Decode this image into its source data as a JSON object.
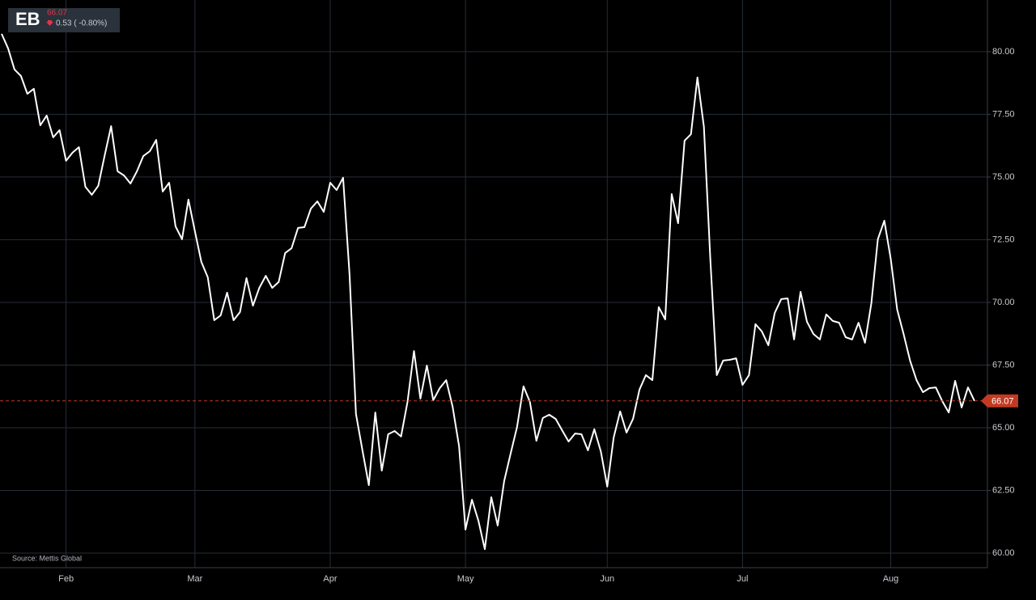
{
  "chart_data": {
    "type": "line",
    "ticker": "EB",
    "price": 66.07,
    "change": "0.53 ( -0.80%)",
    "source": "Source: Mettis Global",
    "last_price": 66.07,
    "last_price_color": "#c23a22",
    "color": "#ffffff",
    "grid": true,
    "ylim": [
      59.42,
      82.06
    ],
    "yticks": [
      {
        "value": 60,
        "label": "60.00"
      },
      {
        "value": 62.5,
        "label": "62.50"
      },
      {
        "value": 65,
        "label": "65.00"
      },
      {
        "value": 67.5,
        "label": "67.50"
      },
      {
        "value": 70,
        "label": "70.00"
      },
      {
        "value": 72.5,
        "label": "72.50"
      },
      {
        "value": 75,
        "label": "75.00"
      },
      {
        "value": 77.5,
        "label": "77.50"
      },
      {
        "value": 80,
        "label": "80.00"
      }
    ],
    "categories": [
      null,
      null,
      null,
      null,
      null,
      null,
      null,
      null,
      null,
      null,
      "Feb",
      null,
      null,
      null,
      null,
      null,
      null,
      null,
      null,
      null,
      null,
      null,
      null,
      null,
      null,
      null,
      null,
      null,
      null,
      null,
      "Mar",
      null,
      null,
      null,
      null,
      null,
      null,
      null,
      null,
      null,
      null,
      null,
      null,
      null,
      null,
      null,
      null,
      null,
      null,
      null,
      null,
      "Apr",
      null,
      null,
      null,
      null,
      null,
      null,
      null,
      null,
      null,
      null,
      null,
      null,
      null,
      null,
      null,
      null,
      null,
      null,
      null,
      null,
      "May",
      null,
      null,
      null,
      null,
      null,
      null,
      null,
      null,
      null,
      null,
      null,
      null,
      null,
      null,
      null,
      null,
      null,
      null,
      null,
      null,
      null,
      "Jun",
      null,
      null,
      null,
      null,
      null,
      null,
      null,
      null,
      null,
      null,
      null,
      null,
      null,
      null,
      null,
      null,
      null,
      null,
      null,
      null,
      "Jul",
      null,
      null,
      null,
      null,
      null,
      null,
      null,
      null,
      null,
      null,
      null,
      null,
      null,
      null,
      null,
      null,
      null,
      null,
      null,
      null,
      null,
      null,
      "Aug",
      null,
      null,
      null,
      null,
      null,
      null,
      null,
      null,
      null,
      null,
      null,
      null,
      null
    ],
    "values": [
      80.71,
      80.13,
      79.29,
      79.03,
      78.32,
      78.52,
      77.06,
      77.45,
      76.58,
      76.87,
      75.65,
      75.97,
      76.19,
      74.61,
      74.29,
      74.65,
      75.87,
      77.03,
      75.23,
      75.06,
      74.74,
      75.23,
      75.84,
      76.03,
      76.48,
      74.42,
      74.77,
      73.03,
      72.52,
      74.1,
      72.84,
      71.61,
      71.0,
      69.29,
      69.48,
      70.39,
      69.29,
      69.61,
      70.97,
      69.87,
      70.58,
      71.06,
      70.58,
      70.81,
      71.97,
      72.16,
      72.97,
      73.0,
      73.74,
      74.03,
      73.61,
      74.77,
      74.48,
      74.97,
      71.1,
      65.55,
      64.1,
      62.71,
      65.61,
      63.29,
      64.74,
      64.87,
      64.65,
      66.03,
      68.06,
      66.16,
      67.48,
      66.1,
      66.58,
      66.9,
      65.84,
      64.26,
      60.94,
      62.13,
      61.29,
      60.16,
      62.23,
      61.1,
      62.87,
      63.97,
      65.03,
      66.65,
      66.03,
      64.48,
      65.39,
      65.52,
      65.35,
      64.9,
      64.45,
      64.77,
      64.74,
      64.1,
      64.94,
      64.06,
      62.65,
      64.61,
      65.65,
      64.81,
      65.35,
      66.52,
      67.1,
      66.9,
      69.81,
      69.32,
      74.32,
      73.16,
      76.45,
      76.71,
      78.97,
      77.0,
      71.74,
      67.1,
      67.68,
      67.71,
      67.77,
      66.71,
      67.1,
      69.13,
      68.84,
      68.29,
      69.58,
      70.13,
      70.16,
      68.52,
      70.42,
      69.23,
      68.74,
      68.52,
      69.52,
      69.26,
      69.19,
      68.61,
      68.52,
      69.19,
      68.39,
      69.97,
      72.52,
      73.26,
      71.74,
      69.71,
      68.74,
      67.68,
      66.9,
      66.42,
      66.58,
      66.61,
      66.06,
      65.61,
      66.87,
      65.81,
      66.61,
      66.07
    ]
  }
}
